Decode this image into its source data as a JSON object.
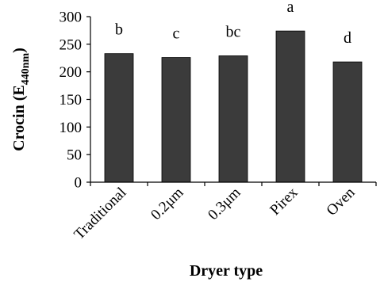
{
  "chart_data": {
    "type": "bar",
    "categories": [
      "Traditional",
      "0.2μm",
      "0.3μm",
      "Pirex",
      "Oven"
    ],
    "values": [
      233,
      226,
      229,
      274,
      218
    ],
    "significance_letters": [
      "b",
      "c",
      "bc",
      "a",
      "d"
    ],
    "xlabel": "Dryer type",
    "ylabel": {
      "main": "Crocin (E",
      "subscript": "440nm",
      "close": ")"
    },
    "ylim": [
      0,
      300
    ],
    "yticks": [
      0,
      50,
      100,
      150,
      200,
      250,
      300
    ],
    "grid": false,
    "legend": "none",
    "colors": {
      "bar": "#3b3b3b",
      "axis": "#000000",
      "background": "#ffffff"
    }
  }
}
